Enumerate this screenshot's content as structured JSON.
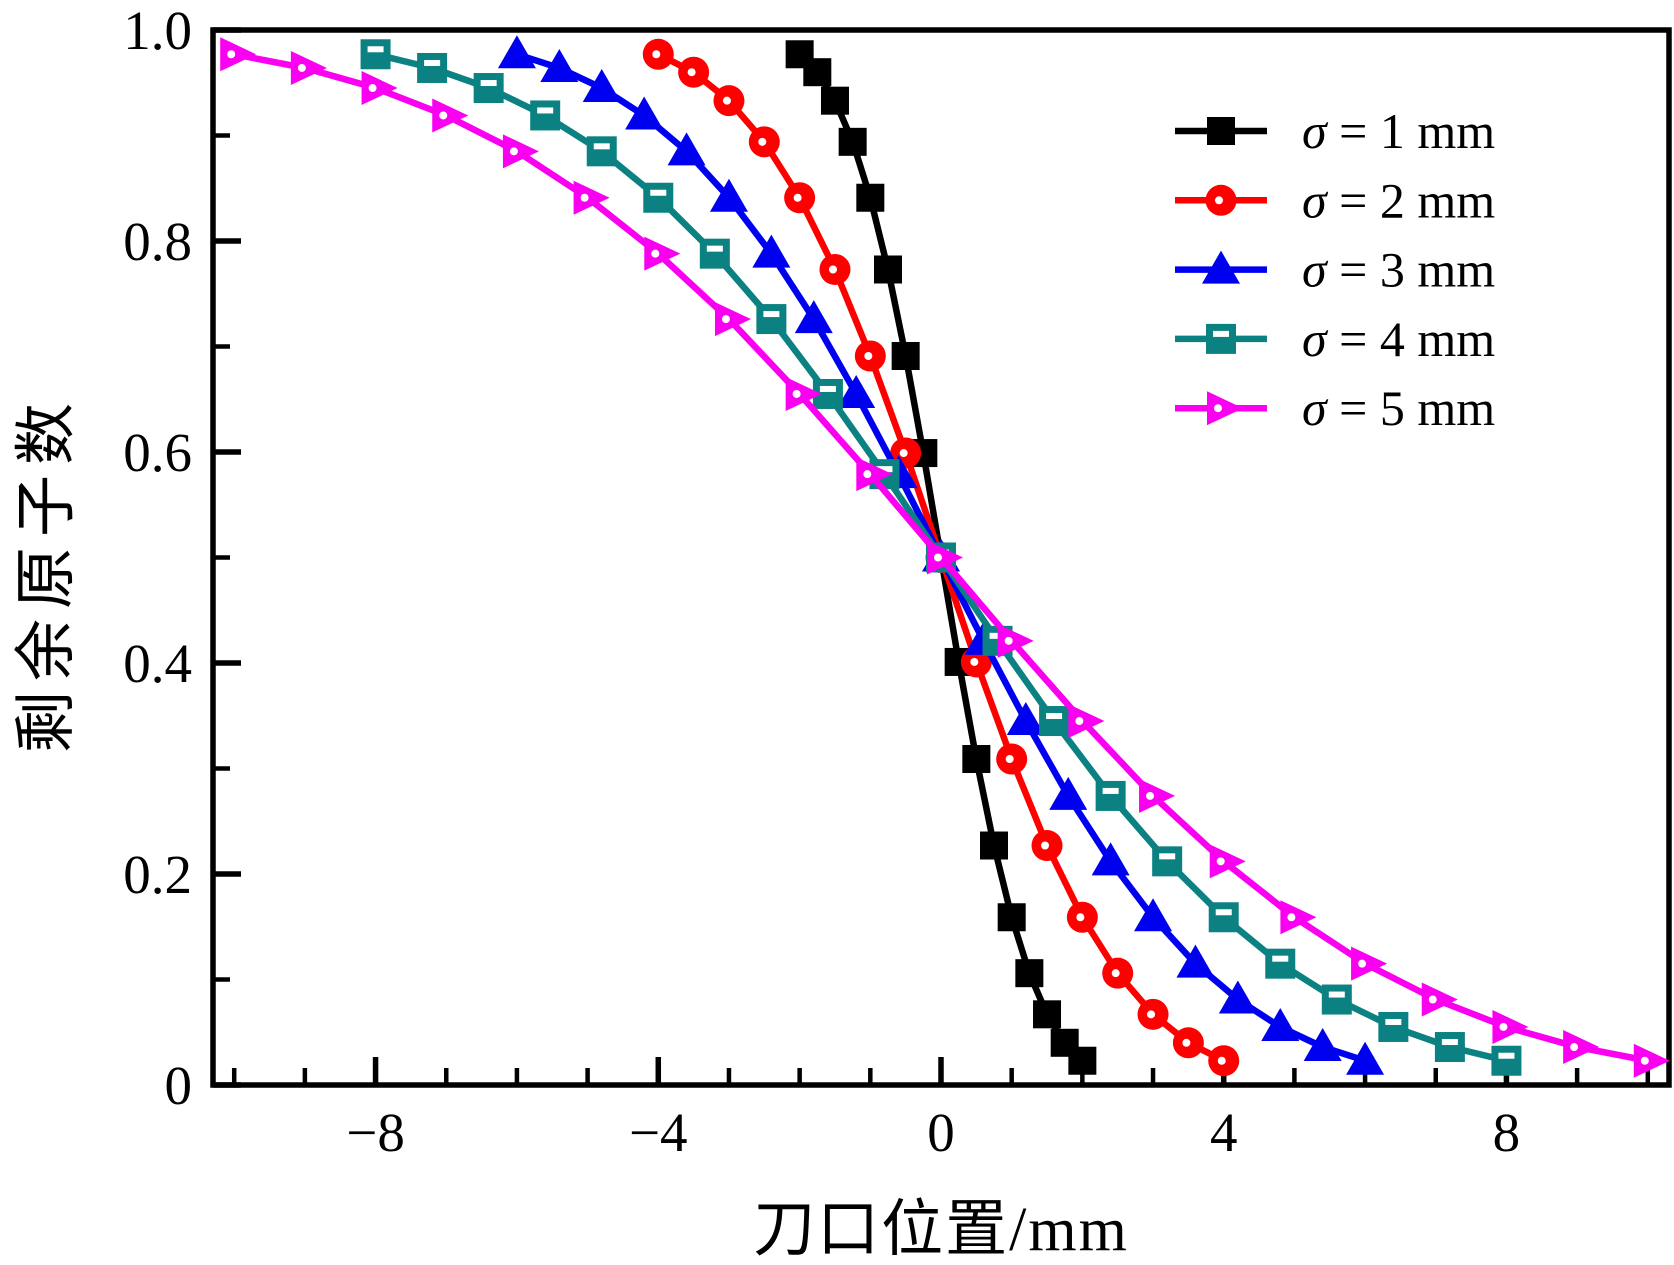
{
  "chart_data": {
    "type": "line",
    "title": "",
    "xlabel": "刀口位置/mm",
    "ylabel": "剩余原子数",
    "xlim": [
      -10.3,
      10.3
    ],
    "ylim": [
      0,
      1
    ],
    "grid": false,
    "legend_position": "upper-right",
    "x_major_ticks": [
      -8,
      -4,
      0,
      4,
      8
    ],
    "x_tick_labels": [
      "−8",
      "−4",
      "0",
      "4",
      "8"
    ],
    "x_minor_step": 1,
    "y_major_ticks": [
      0,
      0.2,
      0.4,
      0.6,
      0.8,
      1.0
    ],
    "y_tick_labels": [
      "0",
      "0.2",
      "0.4",
      "0.6",
      "0.8",
      "1.0"
    ],
    "y_minor_step": 0.1,
    "series": [
      {
        "label": "σ = 1 mm",
        "sigma": 1,
        "color": "#000000",
        "marker": "square",
        "x": [
          -2,
          -1.75,
          -1.5,
          -1.25,
          -1,
          -0.75,
          -0.5,
          -0.25,
          0,
          0.25,
          0.5,
          0.75,
          1,
          1.25,
          1.5,
          1.75,
          2
        ],
        "y": [
          0.977,
          0.96,
          0.933,
          0.894,
          0.841,
          0.773,
          0.691,
          0.599,
          0.5,
          0.401,
          0.309,
          0.227,
          0.159,
          0.106,
          0.067,
          0.04,
          0.023
        ]
      },
      {
        "label": "σ = 2 mm",
        "sigma": 2,
        "color": "#ff0000",
        "marker": "circle-dot",
        "x": [
          -4,
          -3.5,
          -3,
          -2.5,
          -2,
          -1.5,
          -1,
          -0.5,
          0,
          0.5,
          1,
          1.5,
          2,
          2.5,
          3,
          3.5,
          4
        ],
        "y": [
          0.977,
          0.96,
          0.933,
          0.894,
          0.841,
          0.773,
          0.691,
          0.599,
          0.5,
          0.401,
          0.309,
          0.227,
          0.159,
          0.106,
          0.067,
          0.04,
          0.023
        ]
      },
      {
        "label": "σ = 3 mm",
        "sigma": 3,
        "color": "#0000f0",
        "marker": "triangle-up",
        "x": [
          -6,
          -5.4,
          -4.8,
          -4.2,
          -3.6,
          -3,
          -2.4,
          -1.8,
          -1.2,
          -0.6,
          0,
          0.6,
          1.2,
          1.8,
          2.4,
          3,
          3.6,
          4.2,
          4.8,
          5.4,
          6
        ],
        "y": [
          0.977,
          0.964,
          0.945,
          0.919,
          0.885,
          0.841,
          0.788,
          0.726,
          0.655,
          0.579,
          0.5,
          0.421,
          0.345,
          0.274,
          0.212,
          0.159,
          0.115,
          0.081,
          0.055,
          0.036,
          0.023
        ]
      },
      {
        "label": "σ = 4 mm",
        "sigma": 4,
        "color": "#0c8182",
        "marker": "square-dash",
        "x": [
          -8,
          -7.2,
          -6.4,
          -5.6,
          -4.8,
          -4,
          -3.2,
          -2.4,
          -1.6,
          -0.8,
          0,
          0.8,
          1.6,
          2.4,
          3.2,
          4,
          4.8,
          5.6,
          6.4,
          7.2,
          8
        ],
        "y": [
          0.977,
          0.964,
          0.945,
          0.919,
          0.885,
          0.841,
          0.788,
          0.726,
          0.655,
          0.579,
          0.5,
          0.421,
          0.345,
          0.274,
          0.212,
          0.159,
          0.115,
          0.081,
          0.055,
          0.036,
          0.023
        ]
      },
      {
        "label": "σ = 5 mm",
        "sigma": 5,
        "color": "#fa00f0",
        "marker": "triangle-right-dot",
        "x": [
          -10,
          -9,
          -8,
          -7,
          -6,
          -5,
          -4,
          -3,
          -2,
          -1,
          0,
          1,
          2,
          3,
          4,
          5,
          6,
          7,
          8,
          9,
          10
        ],
        "y": [
          0.977,
          0.964,
          0.945,
          0.919,
          0.885,
          0.841,
          0.788,
          0.726,
          0.655,
          0.579,
          0.5,
          0.421,
          0.345,
          0.274,
          0.212,
          0.159,
          0.115,
          0.081,
          0.055,
          0.036,
          0.023
        ]
      }
    ]
  }
}
